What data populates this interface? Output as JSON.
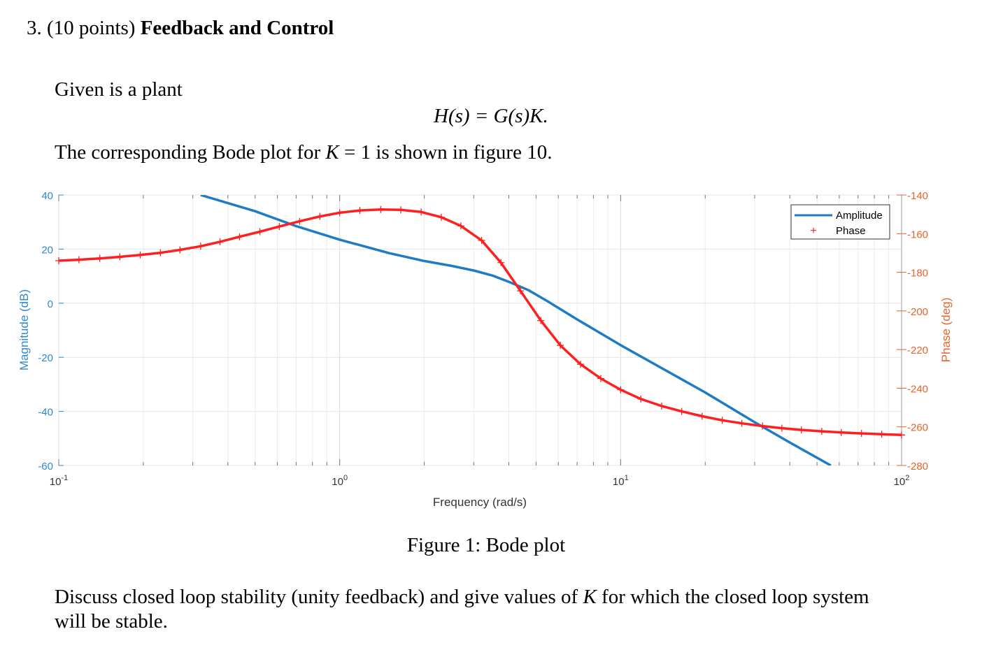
{
  "question": {
    "number": "3.",
    "points": "(10 points)",
    "title": "Feedback and Control"
  },
  "text": {
    "intro": "Given is a plant",
    "equation": "H(s) = G(s)K.",
    "bode_sentence_pre": "The corresponding Bode plot for ",
    "bode_sentence_K": "K",
    "bode_sentence_post": " = 1 is shown in figure 10.",
    "caption": "Figure 1: Bode plot",
    "discussion_line1_pre": "Discuss closed loop stability (unity feedback) and give values of ",
    "discussion_line1_K": "K",
    "discussion_line1_post": " for which the closed loop system",
    "discussion_line2": "will be stable."
  },
  "chart_data": {
    "type": "line",
    "xlabel": "Frequency (rad/s)",
    "ylabel_left": "Magnitude (dB)",
    "ylabel_right": "Phase (deg)",
    "x_scale": "log",
    "xlim": [
      0.1,
      100
    ],
    "ylim_left": [
      -60,
      40
    ],
    "ylim_right": [
      -280,
      -140
    ],
    "x_ticks": [
      {
        "value": 0.1,
        "base": "10",
        "exp": "-1"
      },
      {
        "value": 1,
        "base": "10",
        "exp": "0"
      },
      {
        "value": 10,
        "base": "10",
        "exp": "1"
      },
      {
        "value": 100,
        "base": "10",
        "exp": "2"
      }
    ],
    "y_ticks_left": [
      "40",
      "20",
      "0",
      "-20",
      "-40",
      "-60"
    ],
    "y_ticks_right": [
      "-140",
      "-160",
      "-180",
      "-200",
      "-220",
      "-240",
      "-260",
      "-280"
    ],
    "grid": true,
    "legend_position": "top-right",
    "colors": {
      "amplitude": "#1f7cc4",
      "phase": "#ff1f1f",
      "right_axis": "#e4632a",
      "left_axis": "#2f88cf"
    },
    "series": [
      {
        "name": "Amplitude",
        "axis": "left",
        "marker": "none",
        "x": [
          0.32,
          0.5,
          0.7,
          1.0,
          1.5,
          2.0,
          2.5,
          3.0,
          3.5,
          4.0,
          4.7,
          5.5,
          7.0,
          10,
          20,
          30,
          40,
          56
        ],
        "y": [
          40,
          34,
          28.5,
          23.5,
          18.5,
          15.6,
          13.8,
          12.1,
          10.2,
          7.9,
          4.8,
          0.7,
          -6,
          -15.5,
          -33,
          -44,
          -51.5,
          -60
        ]
      },
      {
        "name": "Phase",
        "axis": "right",
        "marker": "+",
        "x": [
          0.1,
          0.118,
          0.14,
          0.165,
          0.195,
          0.23,
          0.27,
          0.32,
          0.375,
          0.44,
          0.52,
          0.61,
          0.72,
          0.85,
          1.0,
          1.18,
          1.4,
          1.65,
          1.95,
          2.3,
          2.7,
          3.2,
          3.75,
          4.4,
          5.2,
          6.1,
          7.2,
          8.5,
          10,
          11.8,
          14,
          16.5,
          19.5,
          23,
          27,
          32,
          37.5,
          44,
          52,
          61,
          72,
          85,
          100
        ],
        "y": [
          -174,
          -173.5,
          -172.8,
          -172,
          -171,
          -169.9,
          -168.4,
          -166.5,
          -164.2,
          -161.6,
          -159,
          -156.3,
          -153.6,
          -151.1,
          -149.2,
          -148,
          -147.5,
          -147.7,
          -148.8,
          -151.5,
          -156,
          -163.5,
          -175,
          -189.6,
          -205,
          -217.8,
          -227.6,
          -235,
          -240.8,
          -245.6,
          -249.2,
          -252,
          -254.5,
          -256.6,
          -258.2,
          -259.6,
          -260.7,
          -261.6,
          -262.3,
          -262.9,
          -263.4,
          -263.8,
          -264.2
        ]
      }
    ]
  }
}
